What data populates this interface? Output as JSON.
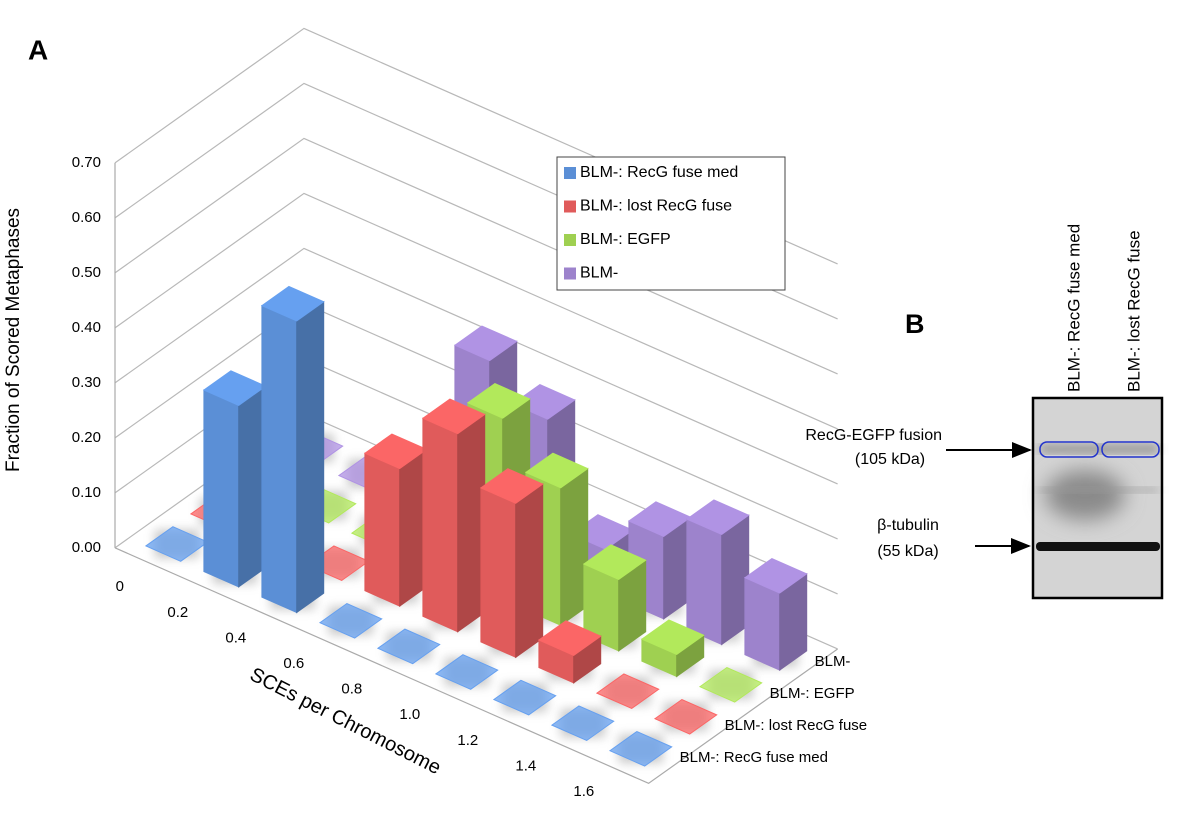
{
  "panel_labels": [
    "A",
    "B"
  ],
  "chart_data": {
    "type": "bar3d",
    "ylabel": "Fraction of Scored Metaphases",
    "xlabel": "SCEs per Chromosome",
    "categories": [
      "0",
      "0.2",
      "0.4",
      "0.6",
      "0.8",
      "1.0",
      "1.2",
      "1.4",
      "1.6"
    ],
    "ylim": [
      0,
      0.7
    ],
    "yticks": [
      {
        "value": 0,
        "label": "0.00"
      },
      {
        "value": 0.1,
        "label": "0.10"
      },
      {
        "value": 0.2,
        "label": "0.20"
      },
      {
        "value": 0.3,
        "label": "0.30"
      },
      {
        "value": 0.4,
        "label": "0.40"
      },
      {
        "value": 0.5,
        "label": "0.50"
      },
      {
        "value": 0.6,
        "label": "0.60"
      },
      {
        "value": 0.7,
        "label": "0.70"
      }
    ],
    "grid": true,
    "series": [
      {
        "name": "BLM-: RecG fuse med",
        "color": "#5b8fd6",
        "values": [
          0,
          0.33,
          0.53,
          0,
          0,
          0,
          0,
          0,
          0
        ]
      },
      {
        "name": "BLM-: lost RecG fuse",
        "color": "#e05b5b",
        "values": [
          0,
          0,
          0,
          0.25,
          0.36,
          0.28,
          0.05,
          0,
          0
        ]
      },
      {
        "name": "BLM-: EGFP",
        "color": "#9fd051",
        "values": [
          0,
          0,
          0,
          0.1,
          0.33,
          0.25,
          0.13,
          0.04,
          0
        ]
      },
      {
        "name": "BLM-",
        "color": "#9d83cc",
        "values": [
          0,
          0,
          0,
          0.33,
          0.27,
          0.08,
          0.15,
          0.2,
          0.14
        ]
      }
    ]
  },
  "blot": {
    "lanes": [
      "BLM-: RecG fuse med",
      "BLM-: lost RecG fuse"
    ],
    "bands": [
      {
        "name": "RecG-EGFP fusion",
        "size": "(105 kDa)"
      },
      {
        "name": "β-tubulin",
        "size": "(55 kDa)"
      }
    ]
  }
}
